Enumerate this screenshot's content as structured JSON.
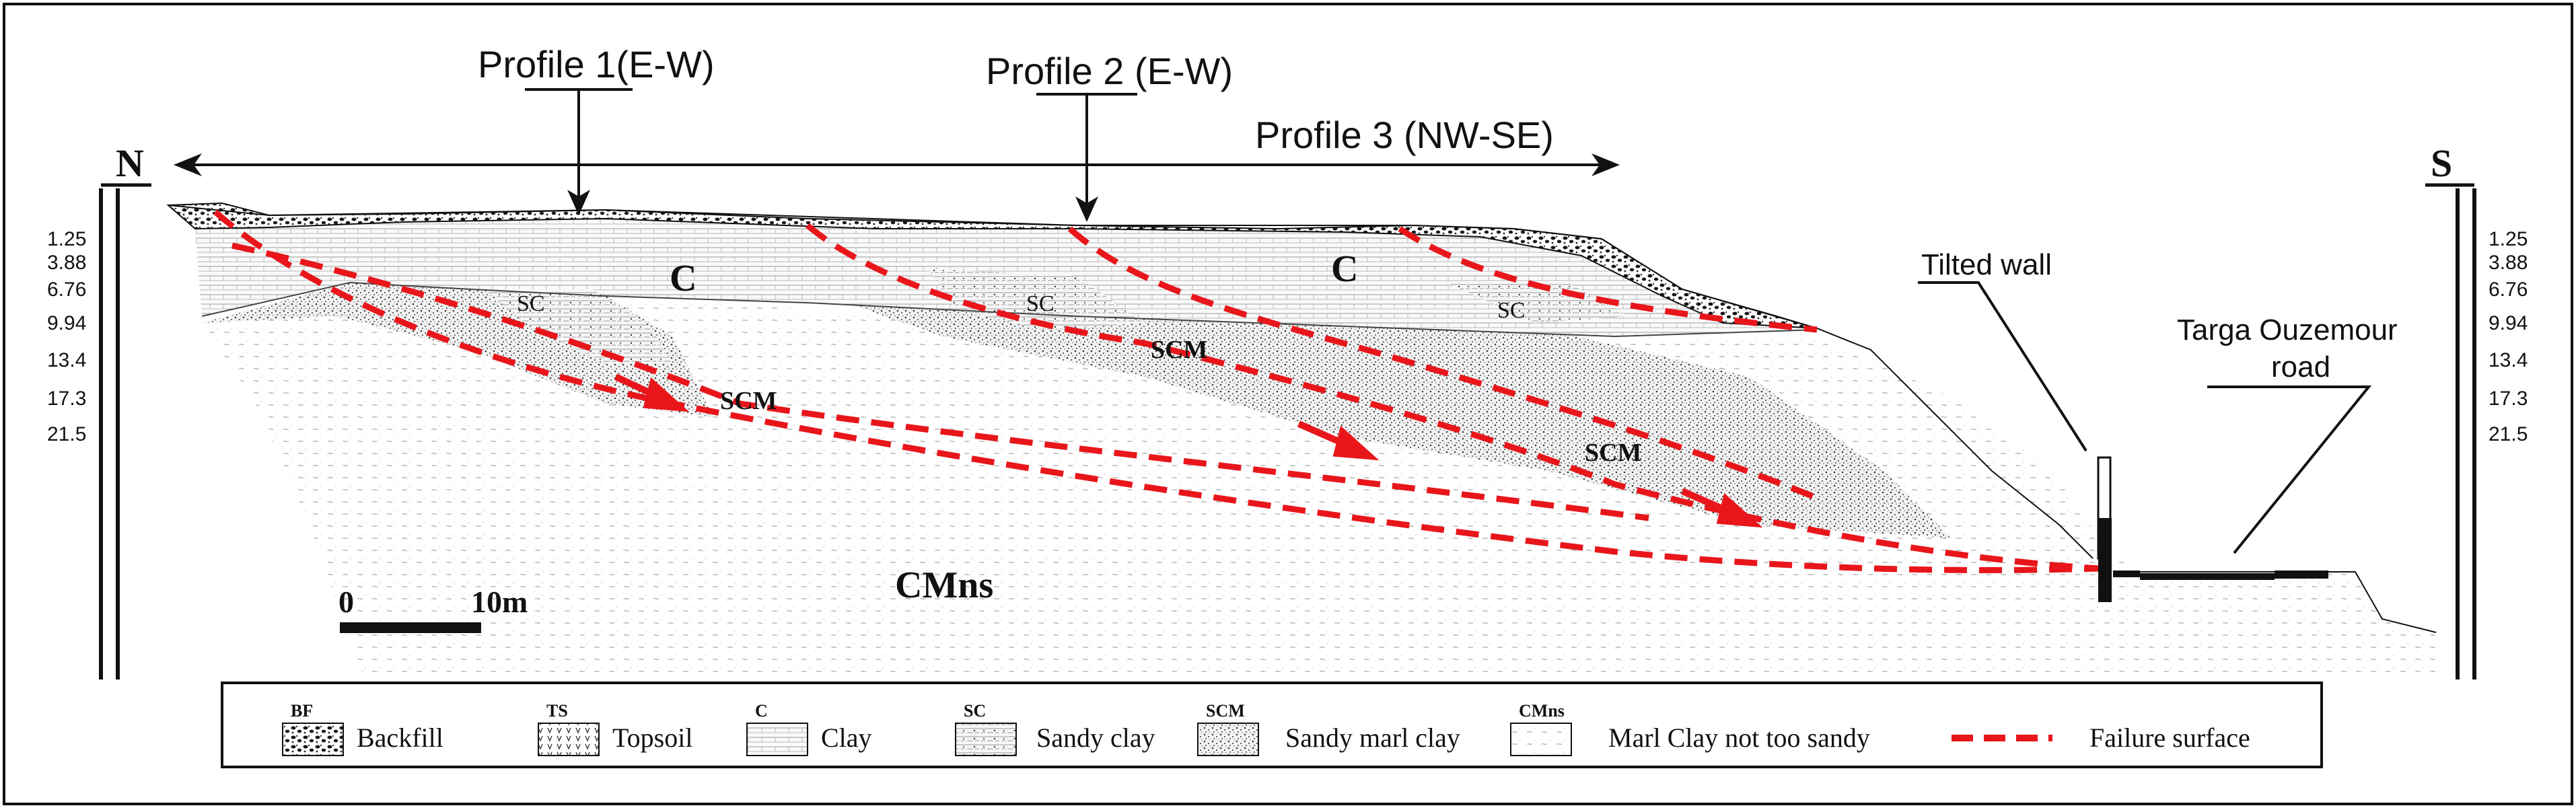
{
  "profiles": {
    "profile_1": "Profile 1(E-W)",
    "profile_2": "Profile 2 (E-W)",
    "profile_3": "Profile 3 (NW-SE)"
  },
  "directions": {
    "north": "N",
    "south": "S"
  },
  "depths": [
    "1.25",
    "3.88",
    "6.76",
    "9.94",
    "13.4",
    "17.3",
    "21.5"
  ],
  "units": {
    "c1": "C",
    "c2": "C",
    "sc1": "SC",
    "sc2": "SC",
    "sc3": "SC",
    "scm1": "SCM",
    "scm2": "SCM",
    "scm3": "SCM",
    "cmns": "CMns"
  },
  "annotations": {
    "tilted_wall": "Tilted wall",
    "road_line1": "Targa Ouzemour",
    "road_line2": "road"
  },
  "scale": {
    "zero": "0",
    "length": "10m"
  },
  "legend": [
    {
      "code": "BF",
      "label": "Backfill",
      "pattern": "backfill"
    },
    {
      "code": "TS",
      "label": "Topsoil",
      "pattern": "topsoil"
    },
    {
      "code": "C",
      "label": "Clay",
      "pattern": "clay"
    },
    {
      "code": "SC",
      "label": "Sandy clay",
      "pattern": "sandyclay"
    },
    {
      "code": "SCM",
      "label": "Sandy marl clay",
      "pattern": "scm"
    },
    {
      "code": "CMns",
      "label": "Marl Clay not too sandy",
      "pattern": "cmns"
    },
    {
      "code": "",
      "label": "Failure surface",
      "pattern": "failure"
    }
  ],
  "colors": {
    "failure": "#e8161b",
    "ink": "#111111"
  }
}
